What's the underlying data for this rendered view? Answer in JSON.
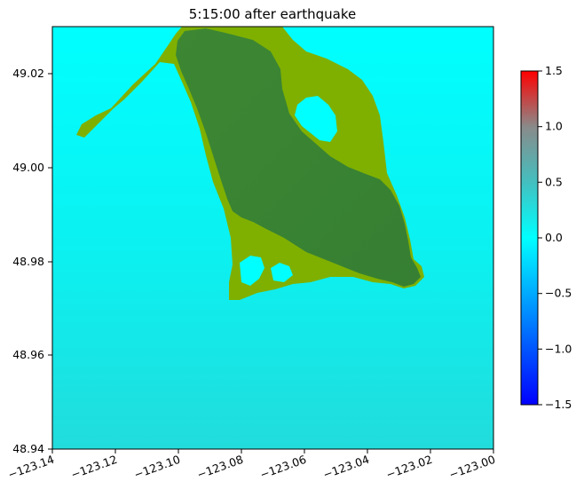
{
  "chart_data": {
    "type": "heatmap",
    "title": "5:15:00 after earthquake",
    "xlim": [
      -123.14,
      -123.0
    ],
    "ylim": [
      48.94,
      49.03
    ],
    "xticks": [
      -123.14,
      -123.12,
      -123.1,
      -123.08,
      -123.06,
      -123.04,
      -123.02,
      -123.0
    ],
    "xtick_labels": [
      "−123.14",
      "−123.12",
      "−123.10",
      "−123.08",
      "−123.06",
      "−123.04",
      "−123.02",
      "−123.00"
    ],
    "yticks": [
      48.94,
      48.96,
      48.98,
      49.0,
      49.02
    ],
    "ytick_labels": [
      "48.94",
      "48.96",
      "48.98",
      "49.00",
      "49.02"
    ],
    "colorbar": {
      "vmin": -1.5,
      "vmax": 1.5,
      "ticks": [
        -1.5,
        -1.0,
        -0.5,
        0.0,
        0.5,
        1.0,
        1.5
      ],
      "tick_labels": [
        "−1.5",
        "−1.0",
        "−0.5",
        "0.0",
        "0.5",
        "1.0",
        "1.5"
      ],
      "colors": [
        "#0000ff",
        "#0066ff",
        "#00ffff",
        "#33cccc",
        "#808080",
        "#cc3333",
        "#ff0000"
      ]
    },
    "colors": {
      "water": "#00f5f5",
      "water_deep": "#20dcdc",
      "land_shallow": "#7fb000",
      "land": "#3a8432"
    },
    "grid": false
  }
}
